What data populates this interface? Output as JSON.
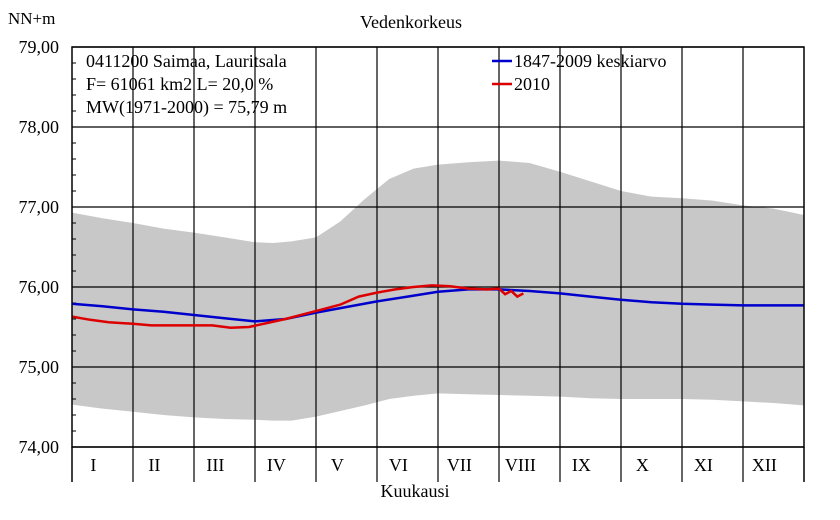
{
  "chart_data": {
    "type": "line",
    "title": "Vedenkorkeus",
    "xlabel": "Kuukausi",
    "ylabel": "NN+m",
    "ylim": [
      74.0,
      79.0
    ],
    "yticks": [
      "74,00",
      "75,00",
      "76,00",
      "77,00",
      "78,00",
      "79,00"
    ],
    "categories": [
      "I",
      "II",
      "III",
      "IV",
      "V",
      "VI",
      "VII",
      "VIII",
      "IX",
      "X",
      "XI",
      "XII"
    ],
    "grid": true,
    "info_lines": [
      "0411200 Saimaa, Lauritsala",
      "F=  61061 km2 L=  20,0 %",
      "MW(1971-2000) = 75,79 m"
    ],
    "legend_position": "top-right",
    "colors": {
      "mean": "#0000cc",
      "year2010": "#dd0000",
      "band": "#c8c8c8"
    },
    "band": {
      "x": [
        0,
        0.5,
        1.0,
        1.5,
        2.0,
        2.5,
        3.0,
        3.3,
        3.6,
        4.0,
        4.4,
        4.8,
        5.2,
        5.6,
        6.0,
        6.5,
        7.0,
        7.5,
        8.0,
        8.5,
        9.0,
        9.5,
        10.0,
        10.5,
        11.0,
        11.5,
        12.0
      ],
      "upper": [
        76.93,
        76.86,
        76.8,
        76.73,
        76.68,
        76.62,
        76.56,
        76.55,
        76.57,
        76.62,
        76.82,
        77.1,
        77.35,
        77.48,
        77.53,
        77.56,
        77.58,
        77.55,
        77.44,
        77.32,
        77.2,
        77.13,
        77.11,
        77.08,
        77.02,
        76.98,
        76.9
      ],
      "lower": [
        74.53,
        74.48,
        74.44,
        74.4,
        74.37,
        74.35,
        74.34,
        74.33,
        74.33,
        74.38,
        74.45,
        74.52,
        74.6,
        74.64,
        74.67,
        74.66,
        74.65,
        74.64,
        74.63,
        74.61,
        74.6,
        74.6,
        74.6,
        74.59,
        74.57,
        74.55,
        74.52
      ]
    },
    "series": [
      {
        "name": "1847-2009 keskiarvo",
        "x": [
          0,
          0.5,
          1.0,
          1.5,
          2.0,
          2.5,
          3.0,
          3.5,
          4.0,
          4.5,
          5.0,
          5.5,
          6.0,
          6.5,
          7.0,
          7.5,
          8.0,
          8.5,
          9.0,
          9.5,
          10.0,
          10.5,
          11.0,
          11.5,
          12.0
        ],
        "values": [
          75.79,
          75.76,
          75.72,
          75.69,
          75.65,
          75.61,
          75.57,
          75.6,
          75.68,
          75.75,
          75.82,
          75.88,
          75.94,
          75.97,
          75.97,
          75.95,
          75.92,
          75.88,
          75.84,
          75.81,
          75.79,
          75.78,
          75.77,
          75.77,
          75.77
        ]
      },
      {
        "name": "2010",
        "x": [
          0,
          0.3,
          0.6,
          1.0,
          1.3,
          1.6,
          2.0,
          2.3,
          2.6,
          2.9,
          3.2,
          3.5,
          3.8,
          4.1,
          4.4,
          4.7,
          5.0,
          5.3,
          5.6,
          5.9,
          6.2,
          6.5,
          6.8,
          7.0,
          7.1,
          7.2,
          7.3,
          7.4
        ],
        "values": [
          75.63,
          75.59,
          75.56,
          75.54,
          75.52,
          75.52,
          75.52,
          75.52,
          75.49,
          75.5,
          75.55,
          75.6,
          75.66,
          75.72,
          75.78,
          75.88,
          75.93,
          75.97,
          76.0,
          76.02,
          76.01,
          75.98,
          75.97,
          75.98,
          75.91,
          75.95,
          75.88,
          75.92
        ]
      }
    ]
  }
}
